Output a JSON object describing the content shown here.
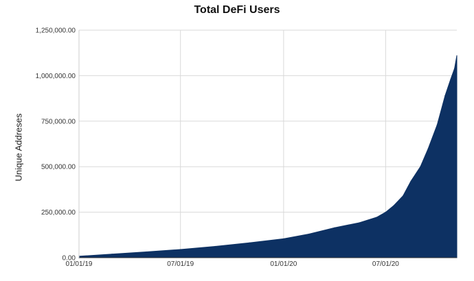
{
  "chart_data": {
    "type": "area",
    "title": "Total DeFi Users",
    "xlabel": "",
    "ylabel": "Unique Addreses",
    "x_ticks": [
      "01/01/19",
      "07/01/19",
      "01/01/20",
      "07/01/20"
    ],
    "y_ticks": [
      "0.00",
      "250,000.00",
      "500,000.00",
      "750,000.00",
      "1,000,000.00",
      "1,250,000.00"
    ],
    "xlim": [
      "2019-01-01",
      "2020-11-05"
    ],
    "ylim": [
      0,
      1250000
    ],
    "grid": true,
    "legend": "none",
    "series": [
      {
        "color": "#0d3163",
        "x": [
          "2019-01-01",
          "2019-03-01",
          "2019-05-01",
          "2019-07-01",
          "2019-09-01",
          "2019-11-01",
          "2020-01-01",
          "2020-02-15",
          "2020-04-01",
          "2020-05-15",
          "2020-06-15",
          "2020-07-01",
          "2020-07-15",
          "2020-08-01",
          "2020-08-15",
          "2020-09-01",
          "2020-09-15",
          "2020-10-01",
          "2020-10-15",
          "2020-10-25",
          "2020-11-01",
          "2020-11-05"
        ],
        "values": [
          8000,
          20000,
          32000,
          45000,
          62000,
          82000,
          104000,
          130000,
          165000,
          192000,
          222000,
          250000,
          285000,
          340000,
          420000,
          500000,
          600000,
          730000,
          890000,
          980000,
          1040000,
          1110000
        ]
      }
    ]
  }
}
